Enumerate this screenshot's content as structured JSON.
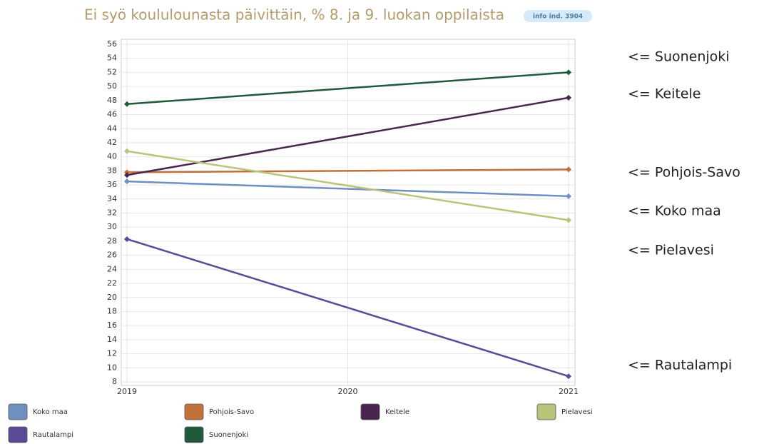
{
  "chart_data": {
    "type": "line",
    "title": "Ei syö koululounasta päivittäin, % 8. ja 9. luokan oppilaista",
    "badge": "info ind. 3904",
    "x": [
      2019,
      2021
    ],
    "xlim": [
      2019,
      2021
    ],
    "xticks": [
      2019,
      2020,
      2021
    ],
    "ylim": [
      8,
      56
    ],
    "yticks": [
      8,
      10,
      12,
      14,
      16,
      18,
      20,
      22,
      24,
      26,
      28,
      30,
      32,
      34,
      36,
      38,
      40,
      42,
      44,
      46,
      48,
      50,
      52,
      54,
      56
    ],
    "grid": true,
    "series": [
      {
        "name": "Koko maa",
        "color": "#6f8fc0",
        "values": [
          36.5,
          34.4
        ]
      },
      {
        "name": "Pohjois-Savo",
        "color": "#c0703a",
        "values": [
          37.8,
          38.2
        ]
      },
      {
        "name": "Keitele",
        "color": "#4a2550",
        "values": [
          37.4,
          48.4
        ]
      },
      {
        "name": "Pielavesi",
        "color": "#b8c47a",
        "values": [
          40.8,
          31.0
        ]
      },
      {
        "name": "Rautalampi",
        "color": "#5a4a98",
        "values": [
          28.3,
          8.8
        ]
      },
      {
        "name": "Suonenjoki",
        "color": "#1f5a3a",
        "values": [
          47.5,
          52.0
        ]
      }
    ],
    "annotations": [
      "<= Suonenjoki",
      "<= Keitele",
      "<= Pohjois-Savo",
      "<= Koko maa",
      "<= Pielavesi",
      "<= Rautalampi"
    ]
  }
}
